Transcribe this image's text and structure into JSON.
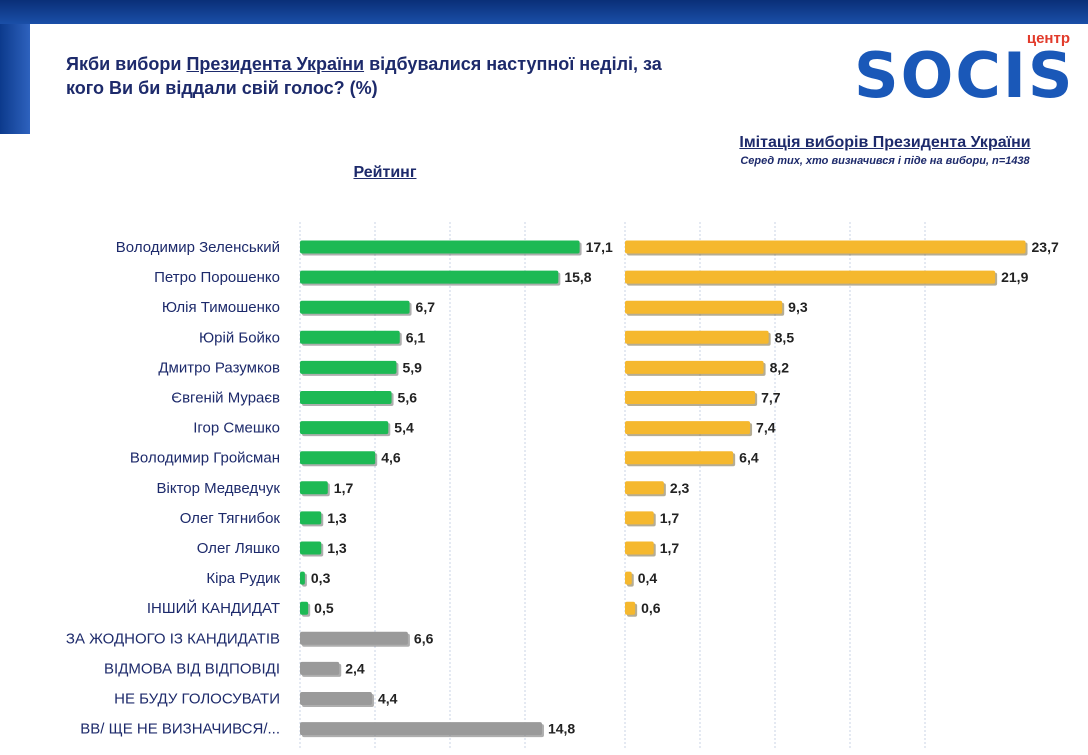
{
  "header": {
    "question_pre": "Якби вибори ",
    "question_underlined": "Президента України",
    "question_mid": " відбувалися наступної неділі, за",
    "question_line2": "кого Ви би віддали свій голос? (%)"
  },
  "logo": {
    "tag": "центр",
    "word": "SOCIS"
  },
  "chart_data": [
    {
      "type": "bar",
      "orientation": "horizontal",
      "title": "Рейтинг",
      "categories": [
        "Володимир Зеленський",
        "Петро Порошенко",
        "Юлія Тимошенко",
        "Юрій Бойко",
        "Дмитро Разумков",
        "Євгеній Мураєв",
        "Ігор Смешко",
        "Володимир Гройсман",
        "Віктор Медведчук",
        "Олег Тягнибок",
        "Олег Ляшко",
        "Кіра Рудик",
        "ІНШИЙ КАНДИДАТ",
        "ЗА ЖОДНОГО ІЗ КАНДИДАТІВ",
        "ВІДМОВА ВІД ВІДПОВІДІ",
        "НЕ БУДУ ГОЛОСУВАТИ",
        "ВВ/ ЩЕ НЕ ВИЗНАЧИВСЯ/..."
      ],
      "values": [
        17.1,
        15.8,
        6.7,
        6.1,
        5.9,
        5.6,
        5.4,
        4.6,
        1.7,
        1.3,
        1.3,
        0.3,
        0.5,
        6.6,
        2.4,
        4.4,
        14.8
      ],
      "value_labels": [
        "17,1",
        "15,8",
        "6,7",
        "6,1",
        "5,9",
        "5,6",
        "5,4",
        "4,6",
        "1,7",
        "1,3",
        "1,3",
        "0,3",
        "0,5",
        "6,6",
        "2,4",
        "4,4",
        "14,8"
      ],
      "bar_colors": [
        "#1db954",
        "#1db954",
        "#1db954",
        "#1db954",
        "#1db954",
        "#1db954",
        "#1db954",
        "#1db954",
        "#1db954",
        "#1db954",
        "#1db954",
        "#1db954",
        "#1db954",
        "#9a9a9a",
        "#9a9a9a",
        "#9a9a9a",
        "#9a9a9a"
      ],
      "grid": true
    },
    {
      "type": "bar",
      "orientation": "horizontal",
      "title": "Імітація виборів Президента України",
      "subtitle": "Серед тих, хто визначився і піде на вибори, n=1438",
      "categories": [
        "Володимир Зеленський",
        "Петро Порошенко",
        "Юлія Тимошенко",
        "Юрій Бойко",
        "Дмитро Разумков",
        "Євгеній Мураєв",
        "Ігор Смешко",
        "Володимир Гройсман",
        "Віктор Медведчук",
        "Олег Тягнибок",
        "Олег Ляшко",
        "Кіра Рудик",
        "ІНШИЙ КАНДИДАТ"
      ],
      "values": [
        23.7,
        21.9,
        9.3,
        8.5,
        8.2,
        7.7,
        7.4,
        6.4,
        2.3,
        1.7,
        1.7,
        0.4,
        0.6
      ],
      "value_labels": [
        "23,7",
        "21,9",
        "9,3",
        "8,5",
        "8,2",
        "7,7",
        "7,4",
        "6,4",
        "2,3",
        "1,7",
        "1,7",
        "0,4",
        "0,6"
      ],
      "bar_color": "#f5b82e",
      "grid": true
    }
  ]
}
